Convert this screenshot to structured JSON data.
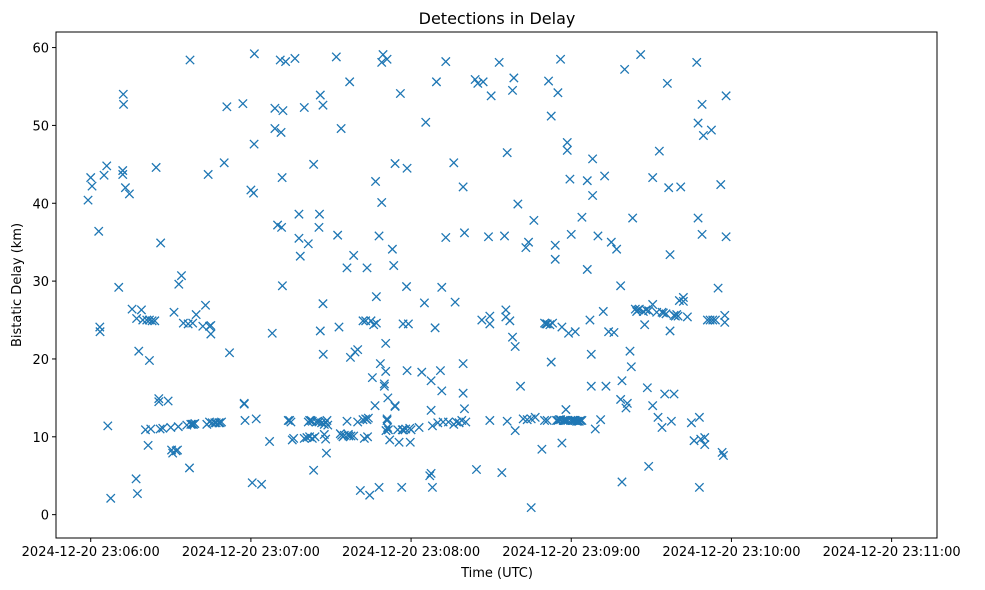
{
  "chart_data": {
    "type": "scatter",
    "title": "Detections in Delay",
    "xlabel": "Time (UTC)",
    "ylabel": "Bistatic Delay (km)",
    "marker": "x",
    "color": "#1f77b4",
    "grid": false,
    "x_unit": "seconds after 2024-12-20 23:06:00",
    "xlim": [
      -13,
      317
    ],
    "ylim": [
      -3,
      62
    ],
    "x_ticks": [
      {
        "value": 0,
        "label": "2024-12-20 23:06:00"
      },
      {
        "value": 60,
        "label": "2024-12-20 23:07:00"
      },
      {
        "value": 120,
        "label": "2024-12-20 23:08:00"
      },
      {
        "value": 180,
        "label": "2024-12-20 23:09:00"
      },
      {
        "value": 240,
        "label": "2024-12-20 23:10:00"
      },
      {
        "value": 300,
        "label": "2024-12-20 23:11:00"
      }
    ],
    "y_ticks": [
      {
        "value": 0,
        "label": "0"
      },
      {
        "value": 10,
        "label": "10"
      },
      {
        "value": 20,
        "label": "20"
      },
      {
        "value": 30,
        "label": "30"
      },
      {
        "value": 40,
        "label": "40"
      },
      {
        "value": 50,
        "label": "50"
      },
      {
        "value": 60,
        "label": "60"
      }
    ],
    "points": [
      [
        -1,
        40.4
      ],
      [
        0,
        43.3
      ],
      [
        0.5,
        42.2
      ],
      [
        3,
        36.4
      ],
      [
        3.4,
        24.1
      ],
      [
        3.5,
        23.5
      ],
      [
        5,
        43.6
      ],
      [
        6,
        44.8
      ],
      [
        6.4,
        11.4
      ],
      [
        7.5,
        2.1
      ],
      [
        10.5,
        29.2
      ],
      [
        12,
        44.2
      ],
      [
        12,
        43.7
      ],
      [
        12.2,
        54
      ],
      [
        12.3,
        52.7
      ],
      [
        13,
        42
      ],
      [
        14.5,
        41.2
      ],
      [
        15.5,
        26.4
      ],
      [
        17,
        4.6
      ],
      [
        17.5,
        2.7
      ],
      [
        18,
        21
      ],
      [
        17.2,
        25.2
      ],
      [
        19,
        26.3
      ],
      [
        19.5,
        25
      ],
      [
        21,
        25
      ],
      [
        22,
        25
      ],
      [
        23,
        24.9
      ],
      [
        24,
        24.9
      ],
      [
        20.5,
        10.9
      ],
      [
        21.5,
        8.9
      ],
      [
        22,
        19.8
      ],
      [
        22.5,
        11
      ],
      [
        24.5,
        44.6
      ],
      [
        25.5,
        14.9
      ],
      [
        25.5,
        14.5
      ],
      [
        26,
        11
      ],
      [
        26.2,
        34.9
      ],
      [
        27,
        11.1
      ],
      [
        29,
        14.6
      ],
      [
        30,
        11.2
      ],
      [
        30.3,
        8.3
      ],
      [
        30.7,
        7.9
      ],
      [
        31.2,
        26
      ],
      [
        32,
        8.2
      ],
      [
        32.5,
        8.3
      ],
      [
        32.8,
        11.3
      ],
      [
        33,
        29.6
      ],
      [
        34,
        30.7
      ],
      [
        34.7,
        24.6
      ],
      [
        36.5,
        24.5
      ],
      [
        36,
        11.5
      ],
      [
        37,
        6
      ],
      [
        37.2,
        58.4
      ],
      [
        37.5,
        11.6
      ],
      [
        38,
        11.6
      ],
      [
        38.5,
        11.6
      ],
      [
        39,
        11.7
      ],
      [
        39.5,
        25.7
      ],
      [
        38.2,
        24.6
      ],
      [
        42,
        24.2
      ],
      [
        43,
        26.9
      ],
      [
        43.5,
        11.6
      ],
      [
        44.5,
        24.2
      ],
      [
        44.5,
        11.9
      ],
      [
        44,
        43.7
      ],
      [
        45.5,
        11.8
      ],
      [
        45,
        24.3
      ],
      [
        45,
        23.2
      ],
      [
        46.5,
        11.8
      ],
      [
        47,
        11.8
      ],
      [
        48,
        11.8
      ],
      [
        48.5,
        11.8
      ],
      [
        49,
        11.9
      ],
      [
        50,
        45.2
      ],
      [
        51,
        52.4
      ],
      [
        52,
        20.8
      ],
      [
        57,
        52.8
      ],
      [
        57.5,
        14.3
      ],
      [
        57.5,
        14.2
      ],
      [
        57.8,
        12.1
      ],
      [
        60,
        41.7
      ],
      [
        60.5,
        4.1
      ],
      [
        61,
        41.3
      ],
      [
        61.2,
        47.6
      ],
      [
        61.3,
        59.2
      ],
      [
        62,
        12.3
      ],
      [
        64,
        3.9
      ],
      [
        67,
        9.4
      ],
      [
        68,
        23.3
      ],
      [
        69,
        52.2
      ],
      [
        69,
        49.6
      ],
      [
        70,
        37.2
      ],
      [
        71,
        58.4
      ],
      [
        71.3,
        49.1
      ],
      [
        71.5,
        36.9
      ],
      [
        71.7,
        43.3
      ],
      [
        71.8,
        29.4
      ],
      [
        72,
        51.9
      ],
      [
        73,
        58.2
      ],
      [
        74,
        12.1
      ],
      [
        74.5,
        12.1
      ],
      [
        75,
        11.9
      ],
      [
        75.5,
        9.6
      ],
      [
        76,
        9.8
      ],
      [
        76.5,
        58.6
      ],
      [
        78,
        38.6
      ],
      [
        78,
        35.5
      ],
      [
        78.5,
        33.2
      ],
      [
        80,
        52.3
      ],
      [
        80,
        9.8
      ],
      [
        81,
        9.9
      ],
      [
        81.5,
        34.8
      ],
      [
        81.5,
        11.9
      ],
      [
        82,
        12.1
      ],
      [
        82,
        10
      ],
      [
        82.5,
        12.1
      ],
      [
        83,
        12
      ],
      [
        83,
        9.8
      ],
      [
        83.5,
        45
      ],
      [
        83.5,
        5.7
      ],
      [
        84,
        10
      ],
      [
        84.5,
        11.9
      ],
      [
        85,
        12
      ],
      [
        85.5,
        11.9
      ],
      [
        85.7,
        38.6
      ],
      [
        85.5,
        36.9
      ],
      [
        86,
        53.9
      ],
      [
        86,
        23.6
      ],
      [
        86.5,
        11.8
      ],
      [
        87,
        52.6
      ],
      [
        87,
        27.1
      ],
      [
        87.1,
        20.6
      ],
      [
        87.5,
        11.6
      ],
      [
        87.5,
        10.3
      ],
      [
        88,
        11.9
      ],
      [
        88.3,
        7.9
      ],
      [
        88.5,
        12.1
      ],
      [
        88.8,
        11.5
      ],
      [
        88,
        9.7
      ],
      [
        92,
        58.8
      ],
      [
        92.5,
        35.9
      ],
      [
        93,
        24.1
      ],
      [
        93.8,
        49.6
      ],
      [
        93.5,
        10.4
      ],
      [
        94,
        10.2
      ],
      [
        94.5,
        10
      ],
      [
        95,
        10.2
      ],
      [
        96,
        31.7
      ],
      [
        96,
        12
      ],
      [
        96.5,
        10.3
      ],
      [
        96.7,
        10.1
      ],
      [
        97,
        55.6
      ],
      [
        97.3,
        20.2
      ],
      [
        97.5,
        10.1
      ],
      [
        98.5,
        33.3
      ],
      [
        98.5,
        10.1
      ],
      [
        99,
        20.9
      ],
      [
        100,
        21.2
      ],
      [
        100,
        11.9
      ],
      [
        101,
        3.1
      ],
      [
        102,
        24.9
      ],
      [
        102,
        12.2
      ],
      [
        102.5,
        9.8
      ],
      [
        103,
        24.9
      ],
      [
        103,
        12.3
      ],
      [
        103.5,
        31.7
      ],
      [
        103.5,
        12.2
      ],
      [
        103.7,
        10
      ],
      [
        104,
        12.4
      ],
      [
        104.5,
        2.5
      ],
      [
        105,
        24.9
      ],
      [
        105.5,
        17.6
      ],
      [
        106,
        24.4
      ],
      [
        106.5,
        14
      ],
      [
        106.7,
        42.8
      ],
      [
        107,
        28
      ],
      [
        107,
        24.6
      ],
      [
        108,
        35.8
      ],
      [
        108,
        3.5
      ],
      [
        108.5,
        19.4
      ],
      [
        109,
        58.1
      ],
      [
        109,
        40.1
      ],
      [
        109.5,
        59.1
      ],
      [
        110,
        16.8
      ],
      [
        110,
        16.5
      ],
      [
        110.5,
        22
      ],
      [
        110.5,
        18.4
      ],
      [
        110.6,
        10.8
      ],
      [
        111,
        12.3
      ],
      [
        111,
        12.1
      ],
      [
        111.2,
        11.2
      ],
      [
        111,
        58.5
      ],
      [
        111.3,
        15
      ],
      [
        111.5,
        10.9
      ],
      [
        112,
        9.6
      ],
      [
        113,
        34.1
      ],
      [
        113.5,
        32
      ],
      [
        114,
        45.1
      ],
      [
        114,
        14
      ],
      [
        114,
        13.9
      ],
      [
        115,
        10.9
      ],
      [
        115.5,
        9.3
      ],
      [
        116,
        54.1
      ],
      [
        116.5,
        3.5
      ],
      [
        116.7,
        10.9
      ],
      [
        117,
        10.9
      ],
      [
        117,
        24.5
      ],
      [
        118,
        11
      ],
      [
        118.3,
        29.3
      ],
      [
        118.5,
        44.5
      ],
      [
        118.5,
        18.5
      ],
      [
        119,
        24.5
      ],
      [
        119.5,
        11.1
      ],
      [
        119.7,
        9.3
      ],
      [
        120,
        10.9
      ],
      [
        123,
        11.2
      ],
      [
        124,
        18.3
      ],
      [
        125,
        27.2
      ],
      [
        125.5,
        50.4
      ],
      [
        127,
        5
      ],
      [
        127.5,
        5.3
      ],
      [
        127.5,
        17.2
      ],
      [
        127.5,
        13.4
      ],
      [
        128,
        3.5
      ],
      [
        128,
        11.4
      ],
      [
        129,
        24
      ],
      [
        129.5,
        55.6
      ],
      [
        130,
        11.8
      ],
      [
        131,
        18.5
      ],
      [
        131.5,
        29.2
      ],
      [
        131.5,
        15.9
      ],
      [
        132,
        11.9
      ],
      [
        133,
        58.2
      ],
      [
        133,
        35.6
      ],
      [
        134,
        11.9
      ],
      [
        136,
        11.6
      ],
      [
        136,
        45.2
      ],
      [
        136.5,
        27.3
      ],
      [
        137,
        11.9
      ],
      [
        138,
        11.8
      ],
      [
        139,
        12.1
      ],
      [
        139.5,
        19.4
      ],
      [
        139.5,
        15.6
      ],
      [
        139.5,
        42.1
      ],
      [
        140,
        13.6
      ],
      [
        140,
        36.2
      ],
      [
        140.5,
        11.9
      ],
      [
        144,
        55.9
      ],
      [
        144.5,
        5.8
      ],
      [
        145,
        55.4
      ],
      [
        146.5,
        25
      ],
      [
        147,
        55.6
      ],
      [
        149,
        35.7
      ],
      [
        149.5,
        25.5
      ],
      [
        149.5,
        24.5
      ],
      [
        149.5,
        12.1
      ],
      [
        150,
        53.8
      ],
      [
        153,
        58.1
      ],
      [
        154,
        5.4
      ],
      [
        155,
        35.8
      ],
      [
        155.5,
        26.3
      ],
      [
        155.5,
        25.4
      ],
      [
        156,
        46.5
      ],
      [
        156,
        12
      ],
      [
        157,
        24.9
      ],
      [
        158,
        54.5
      ],
      [
        158,
        22.8
      ],
      [
        158.5,
        56.1
      ],
      [
        159,
        10.8
      ],
      [
        159,
        21.6
      ],
      [
        160,
        39.9
      ],
      [
        161,
        16.5
      ],
      [
        162,
        12.3
      ],
      [
        163,
        34.3
      ],
      [
        163.5,
        12.2
      ],
      [
        164,
        35
      ],
      [
        165,
        12.3
      ],
      [
        165,
        0.9
      ],
      [
        166,
        37.8
      ],
      [
        166.5,
        12.5
      ],
      [
        169,
        8.4
      ],
      [
        170,
        12.1
      ],
      [
        170,
        24.6
      ],
      [
        170.5,
        24.5
      ],
      [
        171,
        24.5
      ],
      [
        171,
        12.1
      ],
      [
        171.5,
        55.7
      ],
      [
        172,
        24.4
      ],
      [
        172.5,
        51.2
      ],
      [
        172.5,
        19.6
      ],
      [
        173,
        24.6
      ],
      [
        174,
        32.8
      ],
      [
        174,
        34.6
      ],
      [
        174.5,
        12.1
      ],
      [
        175,
        12.1
      ],
      [
        175,
        54.2
      ],
      [
        175.5,
        12.2
      ],
      [
        176,
        12.2
      ],
      [
        176,
        58.5
      ],
      [
        176.5,
        24.1
      ],
      [
        176.5,
        9.2
      ],
      [
        177,
        12.1
      ],
      [
        177.5,
        12.1
      ],
      [
        178,
        13.5
      ],
      [
        178,
        12.1
      ],
      [
        178.5,
        47.8
      ],
      [
        178.5,
        46.8
      ],
      [
        178.7,
        12.1
      ],
      [
        179,
        23.3
      ],
      [
        179.5,
        43.1
      ],
      [
        179.8,
        12.1
      ],
      [
        180,
        36
      ],
      [
        180.5,
        12.1
      ],
      [
        181,
        12.1
      ],
      [
        181.5,
        23.5
      ],
      [
        181.5,
        12.1
      ],
      [
        182,
        12
      ],
      [
        182.5,
        12
      ],
      [
        183,
        12
      ],
      [
        183.5,
        12.1
      ],
      [
        184,
        12.1
      ],
      [
        184,
        38.2
      ],
      [
        186,
        31.5
      ],
      [
        186,
        42.9
      ],
      [
        187,
        25
      ],
      [
        187.5,
        16.5
      ],
      [
        187.5,
        20.6
      ],
      [
        188,
        41
      ],
      [
        188,
        45.7
      ],
      [
        189,
        11
      ],
      [
        190,
        35.8
      ],
      [
        191,
        12.2
      ],
      [
        192,
        26.1
      ],
      [
        192.5,
        43.5
      ],
      [
        193,
        16.5
      ],
      [
        194,
        23.5
      ],
      [
        195,
        35
      ],
      [
        196,
        23.4
      ],
      [
        197,
        34.1
      ],
      [
        198.5,
        29.4
      ],
      [
        198.5,
        14.8
      ],
      [
        199,
        4.2
      ],
      [
        199,
        17.2
      ],
      [
        200,
        57.2
      ],
      [
        200.5,
        13.7
      ],
      [
        201,
        14.3
      ],
      [
        202,
        21
      ],
      [
        202.5,
        19
      ],
      [
        203,
        38.1
      ],
      [
        204,
        26.4
      ],
      [
        204.5,
        26.1
      ],
      [
        205,
        26.3
      ],
      [
        205.5,
        26.4
      ],
      [
        206,
        59.1
      ],
      [
        207,
        26.1
      ],
      [
        207.5,
        24.4
      ],
      [
        208,
        26.3
      ],
      [
        208.5,
        16.3
      ],
      [
        209,
        26.2
      ],
      [
        209,
        6.2
      ],
      [
        210.5,
        43.3
      ],
      [
        210.5,
        27
      ],
      [
        210.5,
        14
      ],
      [
        212,
        26
      ],
      [
        212.5,
        12.5
      ],
      [
        213,
        46.7
      ],
      [
        214,
        26
      ],
      [
        214,
        11.2
      ],
      [
        214.5,
        25.9
      ],
      [
        215,
        15.5
      ],
      [
        215.5,
        25.8
      ],
      [
        216,
        55.4
      ],
      [
        216.5,
        42
      ],
      [
        217,
        23.6
      ],
      [
        217,
        33.4
      ],
      [
        217.5,
        12
      ],
      [
        218.5,
        25.6
      ],
      [
        218.5,
        15.5
      ],
      [
        219,
        25.5
      ],
      [
        219.5,
        25.7
      ],
      [
        220,
        25.5
      ],
      [
        220.5,
        27.5
      ],
      [
        221,
        42.1
      ],
      [
        222,
        27.9
      ],
      [
        222,
        27.4
      ],
      [
        223.5,
        25.4
      ],
      [
        225,
        11.8
      ],
      [
        226,
        9.5
      ],
      [
        227,
        58.1
      ],
      [
        227.5,
        38.1
      ],
      [
        227.5,
        50.3
      ],
      [
        228,
        3.5
      ],
      [
        228,
        12.5
      ],
      [
        228.5,
        9.7
      ],
      [
        229,
        52.7
      ],
      [
        229,
        36
      ],
      [
        229.5,
        48.7
      ],
      [
        230,
        9
      ],
      [
        230,
        9.9
      ],
      [
        231,
        25
      ],
      [
        232,
        25
      ],
      [
        232.5,
        49.4
      ],
      [
        233,
        25
      ],
      [
        234,
        25
      ],
      [
        235,
        29.1
      ],
      [
        236,
        42.4
      ],
      [
        236.5,
        8
      ],
      [
        237,
        7.6
      ],
      [
        237.5,
        25.6
      ],
      [
        237.5,
        24.7
      ],
      [
        238,
        53.8
      ],
      [
        238,
        35.7
      ]
    ]
  }
}
